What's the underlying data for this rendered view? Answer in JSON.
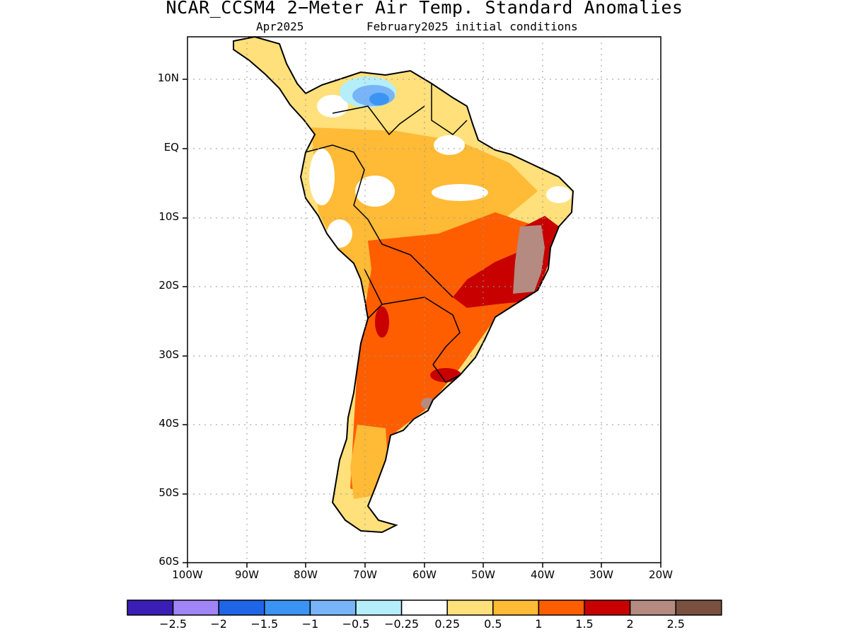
{
  "title": "NCAR_CCSM4 2−Meter Air Temp. Standard Anomalies",
  "subtitle_left": "Apr2025",
  "subtitle_right": "February2025 initial conditions",
  "lat_labels": [
    "10N",
    "EQ",
    "10S",
    "20S",
    "30S",
    "40S",
    "50S",
    "60S"
  ],
  "lon_labels": [
    "100W",
    "90W",
    "80W",
    "70W",
    "60W",
    "50W",
    "40W",
    "30W",
    "20W"
  ],
  "colorbar": {
    "colors": [
      "#3a1fb6",
      "#9f85f5",
      "#1f65e8",
      "#3b94f3",
      "#78b5f8",
      "#b4eefb",
      "#ffffff",
      "#ffe07a",
      "#ffba36",
      "#ff5e00",
      "#c80000",
      "#b58a80",
      "#7a5040"
    ],
    "labels": [
      "−2.5",
      "−2",
      "−1.5",
      "−1",
      "−0.5",
      "−0.25",
      "0.25",
      "0.5",
      "1",
      "1.5",
      "2",
      "2.5"
    ]
  },
  "regions": {
    "cool_venezuela": "#78b5f8",
    "warm_ne_brazil": "#c80000",
    "extreme_ne_brazil": "#b58a80"
  }
}
